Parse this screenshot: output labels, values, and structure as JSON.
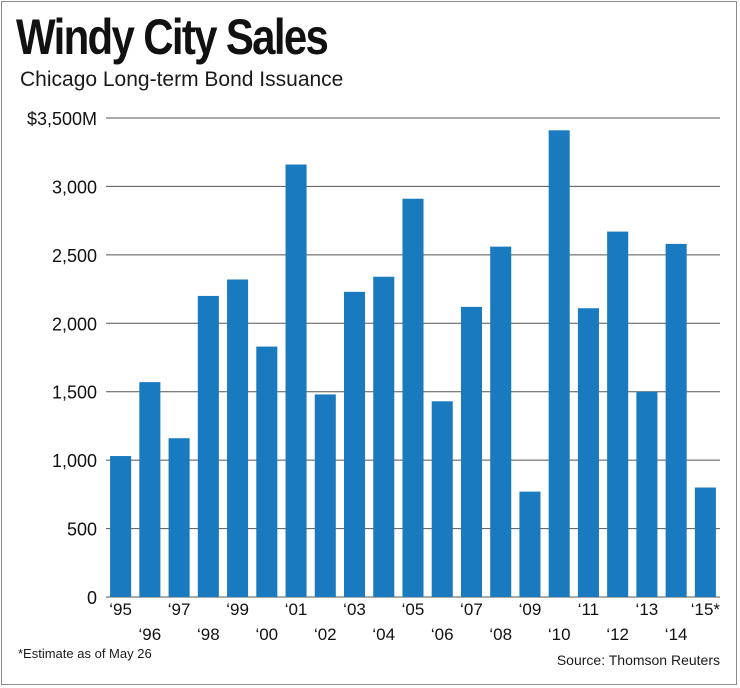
{
  "title": "Windy City Sales",
  "subtitle": "Chicago Long-term Bond Issuance",
  "footnote": "*Estimate as of May 26",
  "source": "Source: Thomson Reuters",
  "colors": {
    "bar": "#1a7abf",
    "grid": "#555555",
    "text": "#111111"
  },
  "chart_data": {
    "type": "bar",
    "categories": [
      "‘95",
      "‘96",
      "‘97",
      "‘98",
      "‘99",
      "‘00",
      "‘01",
      "‘02",
      "‘03",
      "‘04",
      "‘05",
      "‘06",
      "‘07",
      "‘08",
      "‘09",
      "‘10",
      "‘11",
      "‘12",
      "‘13",
      "‘14",
      "‘15*"
    ],
    "values": [
      1030,
      1570,
      1160,
      2200,
      2320,
      1830,
      3160,
      1480,
      2230,
      2340,
      2910,
      1430,
      2120,
      2560,
      770,
      3410,
      2110,
      2670,
      1500,
      2580,
      800
    ],
    "ylim": [
      0,
      3500
    ],
    "yticks": [
      0,
      500,
      1000,
      1500,
      2000,
      2500,
      3000,
      3500
    ],
    "ytick_labels": [
      "0",
      "500",
      "1,000",
      "1,500",
      "2,000",
      "2,500",
      "3,000",
      "$3,500M"
    ],
    "grid": true,
    "xlabel": "",
    "ylabel": ""
  }
}
